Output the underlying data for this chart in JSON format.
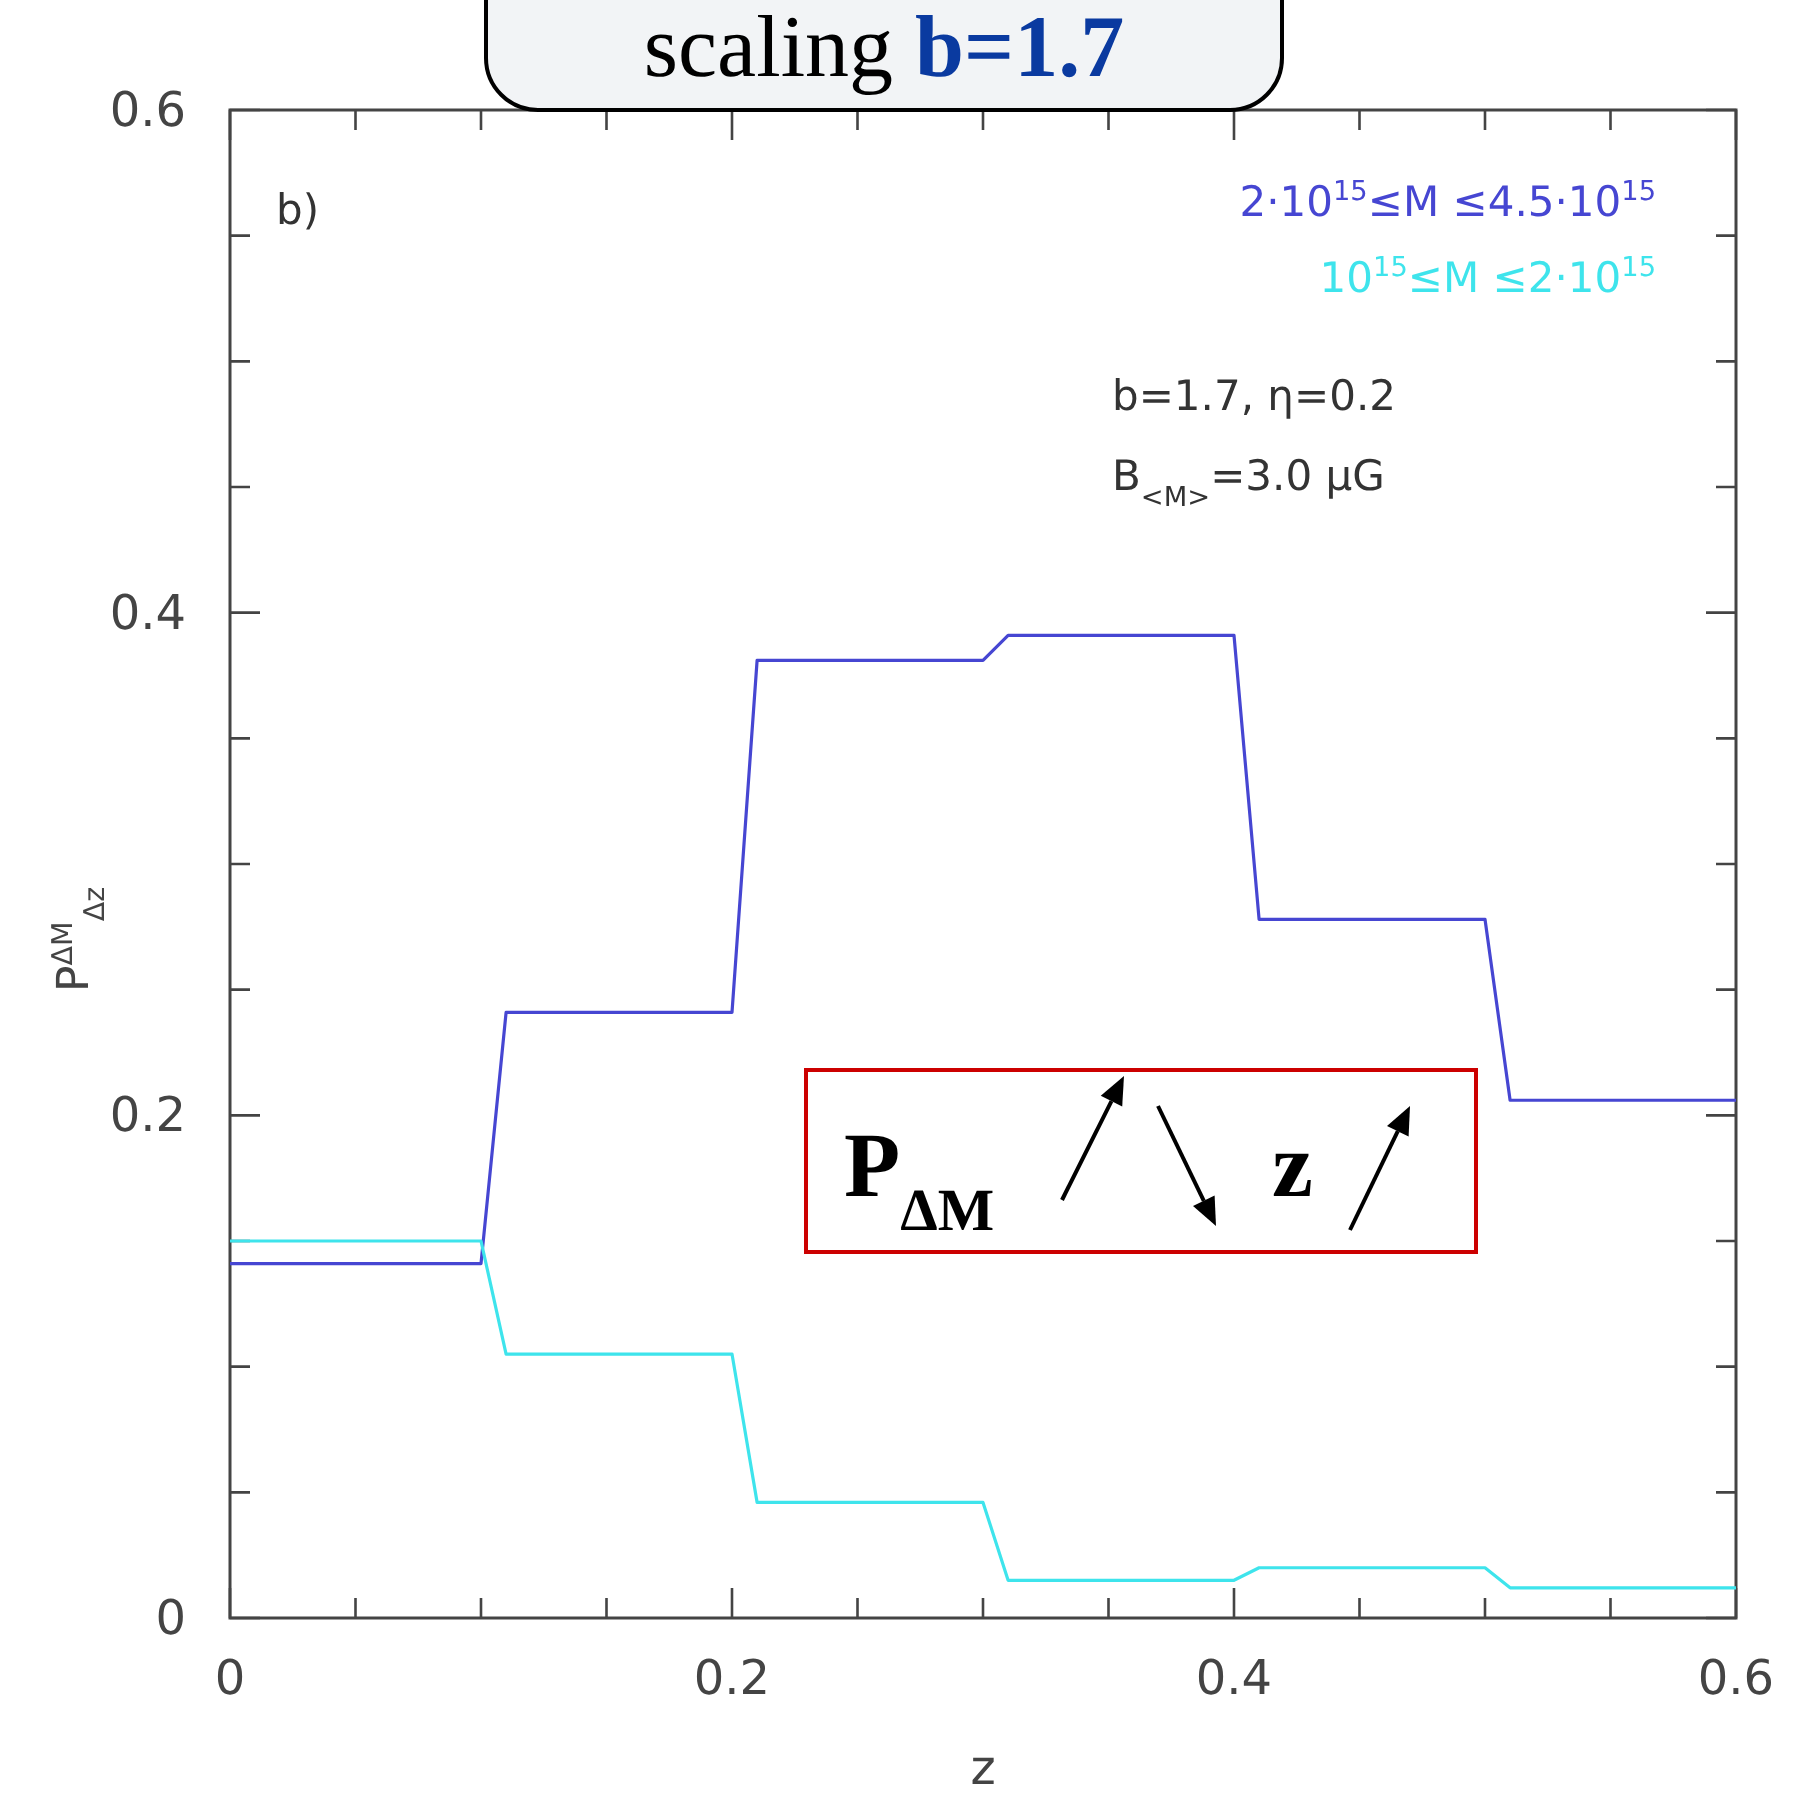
{
  "chart_data": {
    "type": "line",
    "title": "scaling b=1.7",
    "xlabel": "z",
    "ylabel": "P$^{ΔM}$$_{Δz}$",
    "annotations": [
      "b)",
      "b=1.7, η=0.2",
      "B$_{<M>}$=3.0 μG",
      "P$_{ΔM}$",
      "z"
    ],
    "x": [
      0,
      0.1,
      0.11,
      0.2,
      0.21,
      0.3,
      0.31,
      0.4,
      0.41,
      0.5,
      0.51,
      0.6
    ],
    "series": [
      {
        "name": "2·10$^{15}$≤M ≤4.5·10$^{15}$",
        "color": "#4646d2",
        "values": [
          0.141,
          0.141,
          0.241,
          0.241,
          0.381,
          0.381,
          0.391,
          0.391,
          0.278,
          0.278,
          0.206,
          0.206
        ]
      },
      {
        "name": "10$^{15}$≤M ≤2·10$^{15}$",
        "color": "#3ee4ec",
        "values": [
          0.15,
          0.15,
          0.105,
          0.105,
          0.046,
          0.046,
          0.015,
          0.015,
          0.02,
          0.02,
          0.012,
          0.012
        ]
      }
    ],
    "xlim": [
      0,
      0.6
    ],
    "ylim": [
      0,
      0.6
    ],
    "xticks": [
      0,
      {
        "value": 0.05,
        "label": null
      },
      {
        "value": 0.1,
        "label": null
      },
      {
        "value": 0.15,
        "label": null
      },
      0.2,
      {
        "value": 0.25,
        "label": null
      },
      {
        "value": 0.3,
        "label": null
      },
      {
        "value": 0.35,
        "label": null
      },
      0.4,
      {
        "value": 0.45,
        "label": null
      },
      {
        "value": 0.5,
        "label": null
      },
      {
        "value": 0.55,
        "label": null
      },
      0.6
    ],
    "yticks": [
      0,
      {
        "value": 0.05,
        "label": null
      },
      {
        "value": 0.1,
        "label": null
      },
      {
        "value": 0.15,
        "label": null
      },
      0.2,
      {
        "value": 0.25,
        "label": null
      },
      {
        "value": 0.3,
        "label": null
      },
      {
        "value": 0.35,
        "label": null
      },
      0.4,
      {
        "value": 0.45,
        "label": null
      },
      {
        "value": 0.5,
        "label": null
      },
      {
        "value": 0.55,
        "label": null
      },
      0.6
    ],
    "grid": false,
    "legend": "top right",
    "marker": "none",
    "line_style": "solid"
  }
}
